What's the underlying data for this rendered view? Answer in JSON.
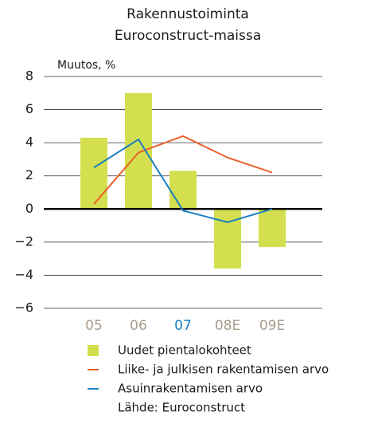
{
  "chart_data": {
    "type": "bar",
    "title": [
      "Rakennustoiminta",
      "Euroconstruct-maissa"
    ],
    "y_axis_label": "Muutos, %",
    "categories": [
      "05",
      "06",
      "07",
      "08E",
      "09E"
    ],
    "category_colors": [
      "#a89c8c",
      "#a89c8c",
      "#1a7fc1",
      "#a89c8c",
      "#a89c8c"
    ],
    "series": [
      {
        "name": "Uudet pientalokohteet",
        "type": "bar",
        "color": "#d3df4e",
        "values": [
          4.3,
          7.0,
          2.3,
          -3.6,
          -2.3
        ]
      },
      {
        "name": "Liike- ja julkisen rakentamisen arvo",
        "type": "line",
        "color": "#e8622a",
        "values": [
          0.3,
          3.4,
          4.4,
          3.1,
          2.2
        ]
      },
      {
        "name": "Asuinrakentamisen arvo",
        "type": "line",
        "color": "#1a7fc1",
        "values": [
          2.5,
          4.2,
          -0.1,
          -0.8,
          0.0
        ]
      }
    ],
    "ylim": [
      -6,
      8
    ],
    "yticks": [
      {
        "value": -6,
        "label": "−6"
      },
      {
        "value": -4,
        "label": "−4"
      },
      {
        "value": -2,
        "label": "−2"
      },
      0,
      2,
      4,
      6,
      8
    ],
    "grid": true,
    "source": "Lähde: Euroconstruct"
  }
}
